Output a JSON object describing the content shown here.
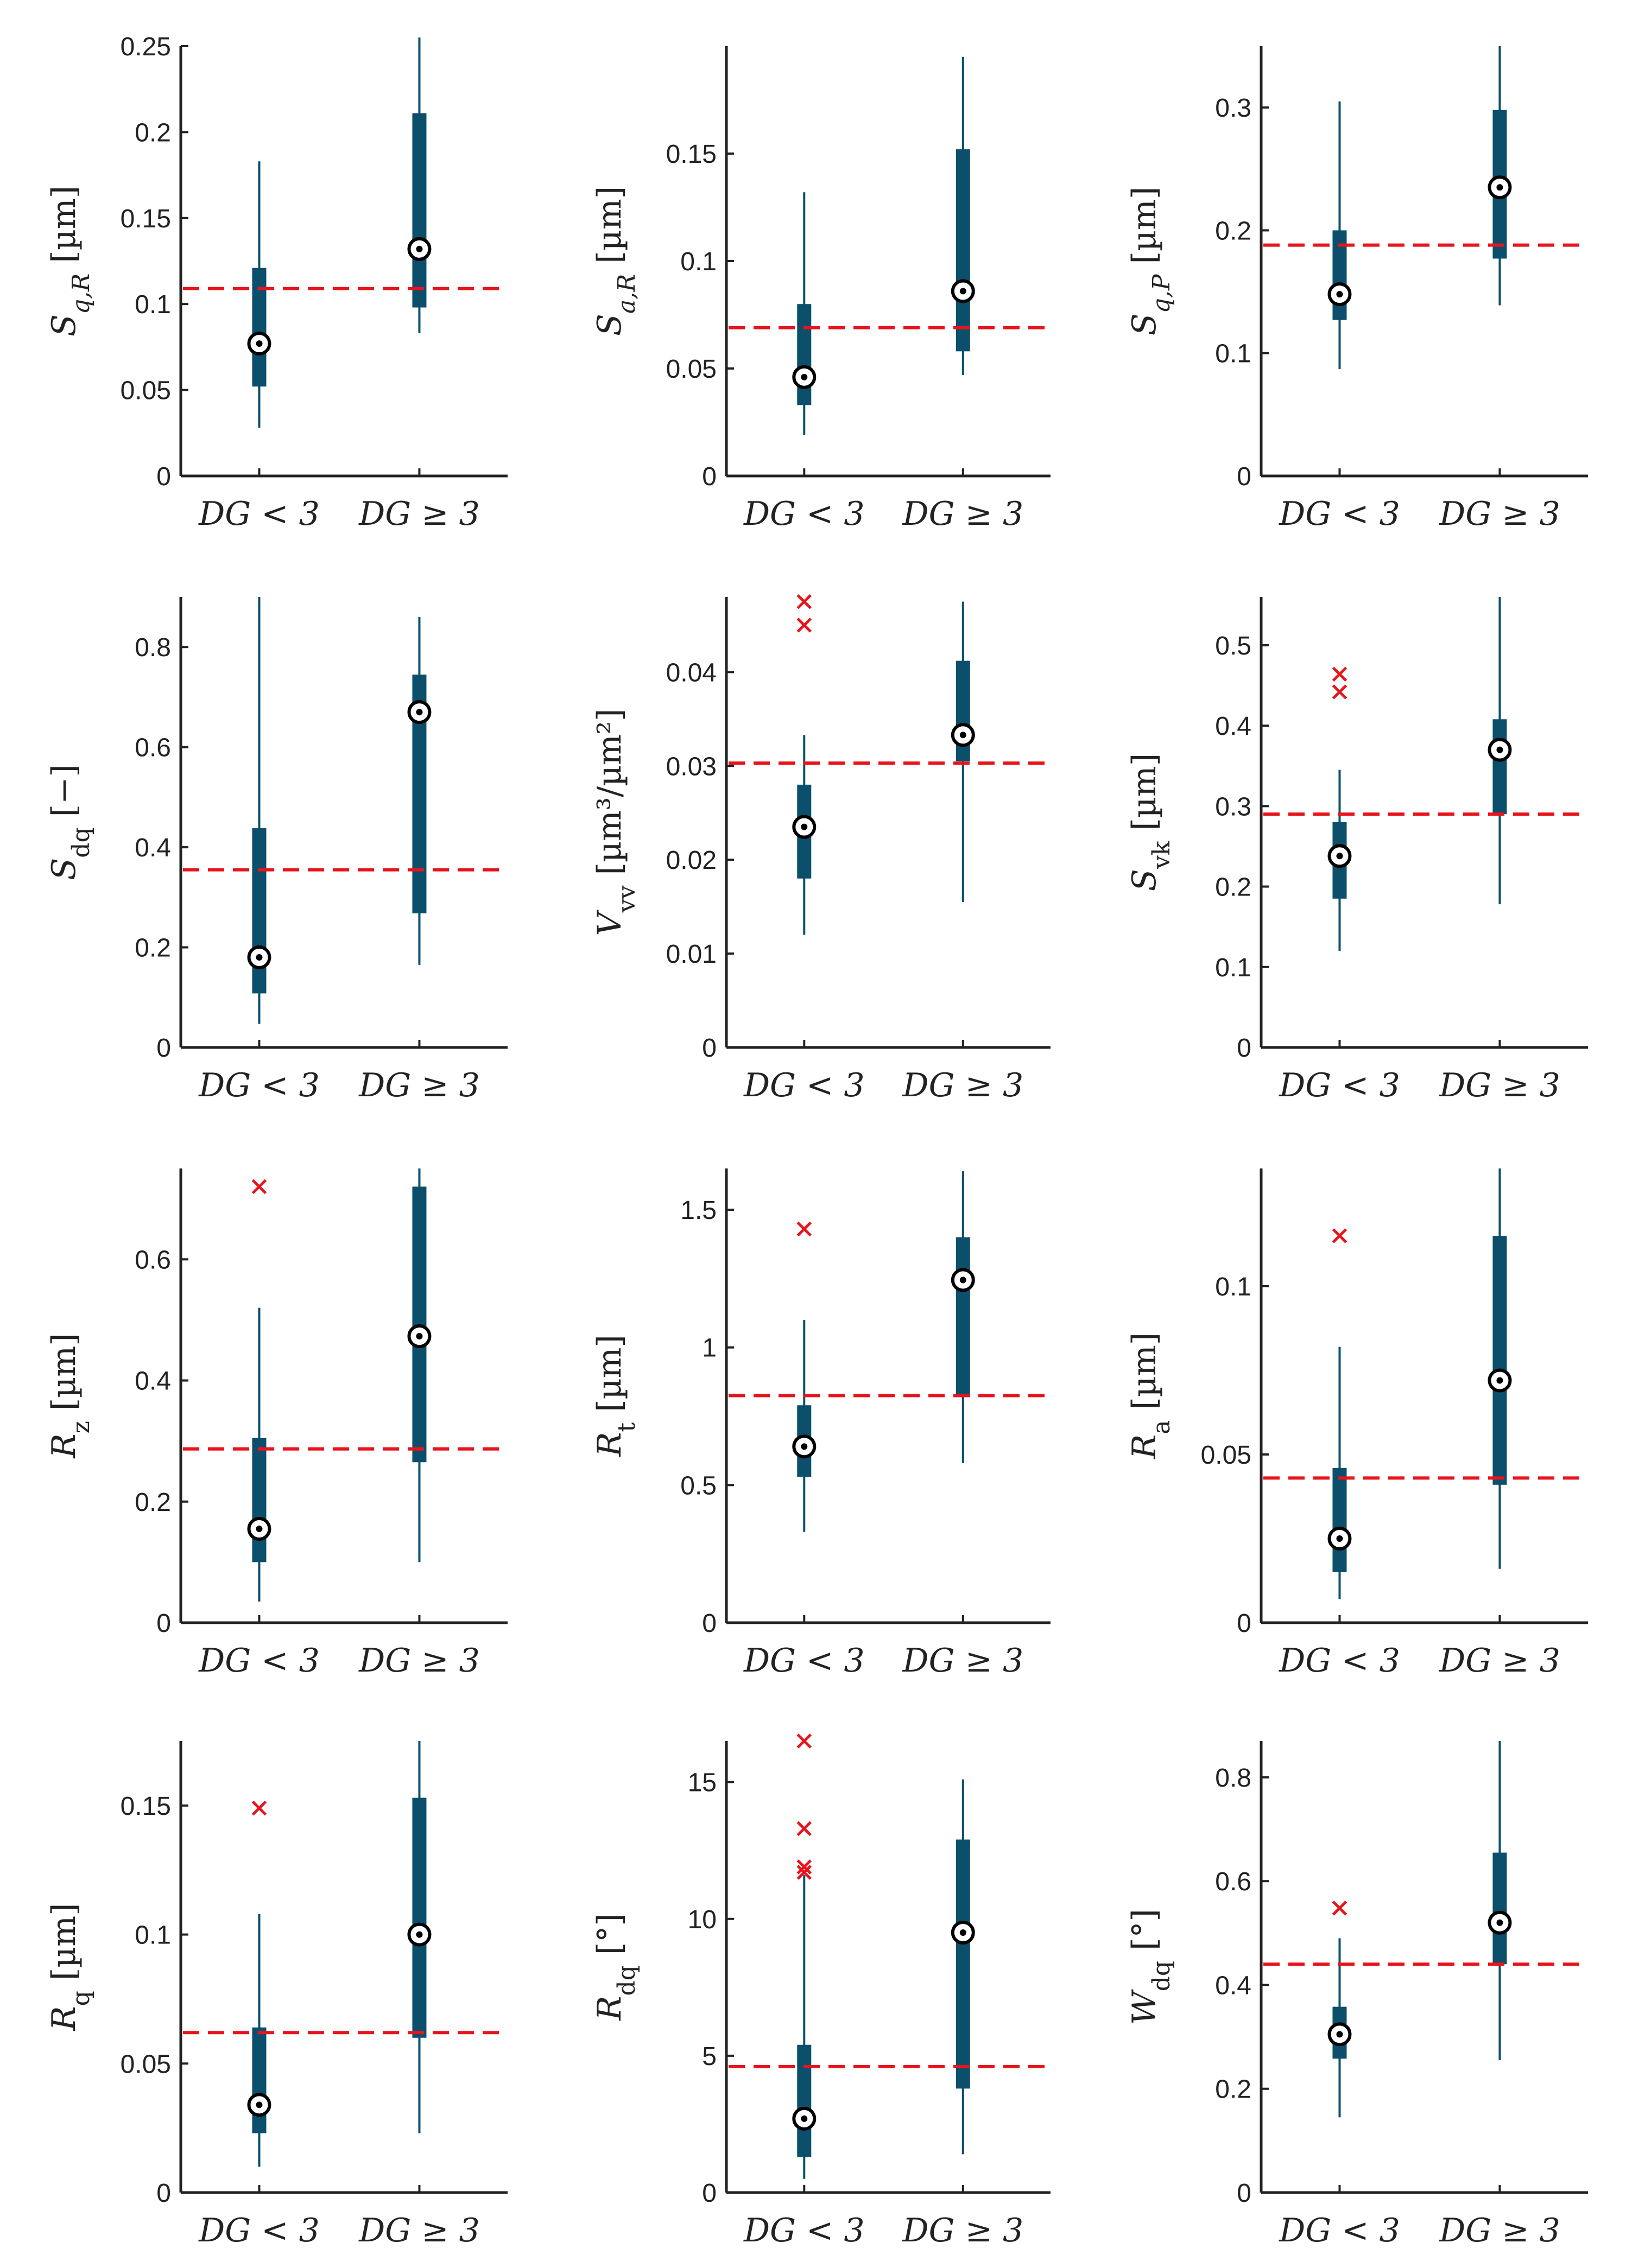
{
  "figure": {
    "background": "#ffffff"
  },
  "style": {
    "box_color": "#0b4f6c",
    "median_ring": "#000000",
    "outlier_color": "#e8141c",
    "threshold_color": "#e8141c",
    "axis_color": "#222222"
  },
  "chart_data": [
    {
      "type": "box",
      "title": "",
      "grid": false,
      "ylabel": {
        "symbol": "S",
        "sub": "q,R",
        "sub_italic": true,
        "sup": "",
        "unit": " [µm]"
      },
      "categories": [
        "DG < 3",
        "DG ≥ 3"
      ],
      "ylim": [
        0,
        0.25
      ],
      "yticks": [
        0,
        0.05,
        0.1,
        0.15,
        0.2,
        0.25
      ],
      "yticklabels": [
        "0",
        "0.05",
        "0.1",
        "0.15",
        "0.2",
        "0.25"
      ],
      "threshold": 0.109,
      "groups": [
        {
          "whisker_low": 0.028,
          "q1": 0.052,
          "median": 0.077,
          "q3": 0.121,
          "whisker_high": 0.183,
          "outliers": []
        },
        {
          "whisker_low": 0.083,
          "q1": 0.098,
          "median": 0.132,
          "q3": 0.211,
          "whisker_high": 0.255,
          "outliers": []
        }
      ]
    },
    {
      "type": "box",
      "title": "",
      "grid": false,
      "ylabel": {
        "symbol": "S",
        "sub": "a,R",
        "sub_italic": true,
        "sup": "",
        "unit": " [µm]"
      },
      "categories": [
        "DG < 3",
        "DG ≥ 3"
      ],
      "ylim": [
        0,
        0.2
      ],
      "yticks": [
        0,
        0.05,
        0.1,
        0.15
      ],
      "yticklabels": [
        "0",
        "0.05",
        "0.1",
        "0.15"
      ],
      "threshold": 0.069,
      "groups": [
        {
          "whisker_low": 0.019,
          "q1": 0.033,
          "median": 0.046,
          "q3": 0.08,
          "whisker_high": 0.132,
          "outliers": []
        },
        {
          "whisker_low": 0.047,
          "q1": 0.058,
          "median": 0.086,
          "q3": 0.152,
          "whisker_high": 0.195,
          "outliers": []
        }
      ]
    },
    {
      "type": "box",
      "title": "",
      "grid": false,
      "ylabel": {
        "symbol": "S",
        "sub": "q,P",
        "sub_italic": true,
        "sup": "",
        "unit": " [µm]"
      },
      "categories": [
        "DG < 3",
        "DG ≥ 3"
      ],
      "ylim": [
        0,
        0.35
      ],
      "yticks": [
        0,
        0.1,
        0.2,
        0.3
      ],
      "yticklabels": [
        "0",
        "0.1",
        "0.2",
        "0.3"
      ],
      "threshold": 0.188,
      "groups": [
        {
          "whisker_low": 0.087,
          "q1": 0.127,
          "median": 0.148,
          "q3": 0.2,
          "whisker_high": 0.305,
          "outliers": []
        },
        {
          "whisker_low": 0.139,
          "q1": 0.177,
          "median": 0.235,
          "q3": 0.298,
          "whisker_high": 0.35,
          "outliers": []
        }
      ]
    },
    {
      "type": "box",
      "title": "",
      "grid": false,
      "ylabel": {
        "symbol": "S",
        "sub": "dq",
        "sub_italic": false,
        "sup": "",
        "unit": " [−]"
      },
      "categories": [
        "DG < 3",
        "DG ≥ 3"
      ],
      "ylim": [
        0,
        0.9
      ],
      "yticks": [
        0,
        0.2,
        0.4,
        0.6,
        0.8
      ],
      "yticklabels": [
        "0",
        "0.2",
        "0.4",
        "0.6",
        "0.8"
      ],
      "threshold": 0.355,
      "groups": [
        {
          "whisker_low": 0.047,
          "q1": 0.108,
          "median": 0.18,
          "q3": 0.438,
          "whisker_high": 0.9,
          "outliers": []
        },
        {
          "whisker_low": 0.165,
          "q1": 0.268,
          "median": 0.67,
          "q3": 0.745,
          "whisker_high": 0.86,
          "outliers": []
        }
      ]
    },
    {
      "type": "box",
      "title": "",
      "grid": false,
      "ylabel": {
        "symbol": "V",
        "sub": "vv",
        "sub_italic": false,
        "sup": "",
        "unit": " [µm³/µm²]"
      },
      "categories": [
        "DG < 3",
        "DG ≥ 3"
      ],
      "ylim": [
        0,
        0.048
      ],
      "yticks": [
        0,
        0.01,
        0.02,
        0.03,
        0.04
      ],
      "yticklabels": [
        "0",
        "0.01",
        "0.02",
        "0.03",
        "0.04"
      ],
      "threshold": 0.0303,
      "groups": [
        {
          "whisker_low": 0.012,
          "q1": 0.018,
          "median": 0.0235,
          "q3": 0.028,
          "whisker_high": 0.0333,
          "outliers": [
            0.045,
            0.0475
          ]
        },
        {
          "whisker_low": 0.0155,
          "q1": 0.0305,
          "median": 0.0333,
          "q3": 0.0412,
          "whisker_high": 0.0475,
          "outliers": []
        }
      ]
    },
    {
      "type": "box",
      "title": "",
      "grid": false,
      "ylabel": {
        "symbol": "S",
        "sub": "vk",
        "sub_italic": false,
        "sup": "",
        "unit": " [µm]"
      },
      "categories": [
        "DG < 3",
        "DG ≥ 3"
      ],
      "ylim": [
        0,
        0.56
      ],
      "yticks": [
        0,
        0.1,
        0.2,
        0.3,
        0.4,
        0.5
      ],
      "yticklabels": [
        "0",
        "0.1",
        "0.2",
        "0.3",
        "0.4",
        "0.5"
      ],
      "threshold": 0.29,
      "groups": [
        {
          "whisker_low": 0.12,
          "q1": 0.185,
          "median": 0.238,
          "q3": 0.28,
          "whisker_high": 0.345,
          "outliers": [
            0.442,
            0.464
          ]
        },
        {
          "whisker_low": 0.178,
          "q1": 0.29,
          "median": 0.37,
          "q3": 0.408,
          "whisker_high": 0.56,
          "outliers": []
        }
      ]
    },
    {
      "type": "box",
      "title": "",
      "grid": false,
      "ylabel": {
        "symbol": "R",
        "sub": "z",
        "sub_italic": false,
        "sup": "",
        "unit": " [µm]"
      },
      "categories": [
        "DG < 3",
        "DG ≥ 3"
      ],
      "ylim": [
        0,
        0.75
      ],
      "yticks": [
        0,
        0.2,
        0.4,
        0.6
      ],
      "yticklabels": [
        "0",
        "0.2",
        "0.4",
        "0.6"
      ],
      "threshold": 0.287,
      "groups": [
        {
          "whisker_low": 0.035,
          "q1": 0.1,
          "median": 0.155,
          "q3": 0.305,
          "whisker_high": 0.52,
          "outliers": [
            0.72
          ]
        },
        {
          "whisker_low": 0.1,
          "q1": 0.265,
          "median": 0.473,
          "q3": 0.72,
          "whisker_high": 0.75,
          "outliers": []
        }
      ]
    },
    {
      "type": "box",
      "title": "",
      "grid": false,
      "ylabel": {
        "symbol": "R",
        "sub": "t",
        "sub_italic": false,
        "sup": "",
        "unit": " [µm]"
      },
      "categories": [
        "DG < 3",
        "DG ≥ 3"
      ],
      "ylim": [
        0,
        1.65
      ],
      "yticks": [
        0,
        0.5,
        1,
        1.5
      ],
      "yticklabels": [
        "0",
        "0.5",
        "1",
        "1.5"
      ],
      "threshold": 0.825,
      "groups": [
        {
          "whisker_low": 0.33,
          "q1": 0.53,
          "median": 0.64,
          "q3": 0.79,
          "whisker_high": 1.1,
          "outliers": [
            1.43
          ]
        },
        {
          "whisker_low": 0.58,
          "q1": 0.82,
          "median": 1.245,
          "q3": 1.4,
          "whisker_high": 1.64,
          "outliers": []
        }
      ]
    },
    {
      "type": "box",
      "title": "",
      "grid": false,
      "ylabel": {
        "symbol": "R",
        "sub": "a",
        "sub_italic": false,
        "sup": "",
        "unit": " [µm]"
      },
      "categories": [
        "DG < 3",
        "DG ≥ 3"
      ],
      "ylim": [
        0,
        0.135
      ],
      "yticks": [
        0,
        0.05,
        0.1
      ],
      "yticklabels": [
        "0",
        "0.05",
        "0.1"
      ],
      "threshold": 0.043,
      "groups": [
        {
          "whisker_low": 0.007,
          "q1": 0.015,
          "median": 0.025,
          "q3": 0.046,
          "whisker_high": 0.082,
          "outliers": [
            0.115
          ]
        },
        {
          "whisker_low": 0.016,
          "q1": 0.041,
          "median": 0.072,
          "q3": 0.115,
          "whisker_high": 0.135,
          "outliers": []
        }
      ]
    },
    {
      "type": "box",
      "title": "",
      "grid": false,
      "ylabel": {
        "symbol": "R",
        "sub": "q",
        "sub_italic": false,
        "sup": "",
        "unit": " [µm]"
      },
      "categories": [
        "DG < 3",
        "DG ≥ 3"
      ],
      "ylim": [
        0,
        0.175
      ],
      "yticks": [
        0,
        0.05,
        0.1,
        0.15
      ],
      "yticklabels": [
        "0",
        "0.05",
        "0.1",
        "0.15"
      ],
      "threshold": 0.062,
      "groups": [
        {
          "whisker_low": 0.01,
          "q1": 0.023,
          "median": 0.034,
          "q3": 0.064,
          "whisker_high": 0.108,
          "outliers": [
            0.149
          ]
        },
        {
          "whisker_low": 0.023,
          "q1": 0.06,
          "median": 0.1,
          "q3": 0.153,
          "whisker_high": 0.175,
          "outliers": []
        }
      ]
    },
    {
      "type": "box",
      "title": "",
      "grid": false,
      "ylabel": {
        "symbol": "R",
        "sub": "dq",
        "sub_italic": false,
        "sup": "",
        "unit": " [°]"
      },
      "categories": [
        "DG < 3",
        "DG ≥ 3"
      ],
      "ylim": [
        0,
        16.5
      ],
      "yticks": [
        0,
        5,
        10,
        15
      ],
      "yticklabels": [
        "0",
        "5",
        "10",
        "15"
      ],
      "threshold": 4.6,
      "groups": [
        {
          "whisker_low": 0.5,
          "q1": 1.3,
          "median": 2.7,
          "q3": 5.4,
          "whisker_high": 11.6,
          "outliers": [
            11.7,
            11.9,
            13.3,
            16.5
          ]
        },
        {
          "whisker_low": 1.4,
          "q1": 3.8,
          "median": 9.5,
          "q3": 12.9,
          "whisker_high": 15.1,
          "outliers": []
        }
      ]
    },
    {
      "type": "box",
      "title": "",
      "grid": false,
      "ylabel": {
        "symbol": "W",
        "sub": "dq",
        "sub_italic": false,
        "sup": "",
        "unit": " [°]"
      },
      "categories": [
        "DG < 3",
        "DG ≥ 3"
      ],
      "ylim": [
        0,
        0.87
      ],
      "yticks": [
        0,
        0.2,
        0.4,
        0.6,
        0.8
      ],
      "yticklabels": [
        "0",
        "0.2",
        "0.4",
        "0.6",
        "0.8"
      ],
      "threshold": 0.44,
      "groups": [
        {
          "whisker_low": 0.145,
          "q1": 0.258,
          "median": 0.305,
          "q3": 0.358,
          "whisker_high": 0.49,
          "outliers": [
            0.548
          ]
        },
        {
          "whisker_low": 0.255,
          "q1": 0.44,
          "median": 0.52,
          "q3": 0.655,
          "whisker_high": 0.87,
          "outliers": []
        }
      ]
    }
  ]
}
